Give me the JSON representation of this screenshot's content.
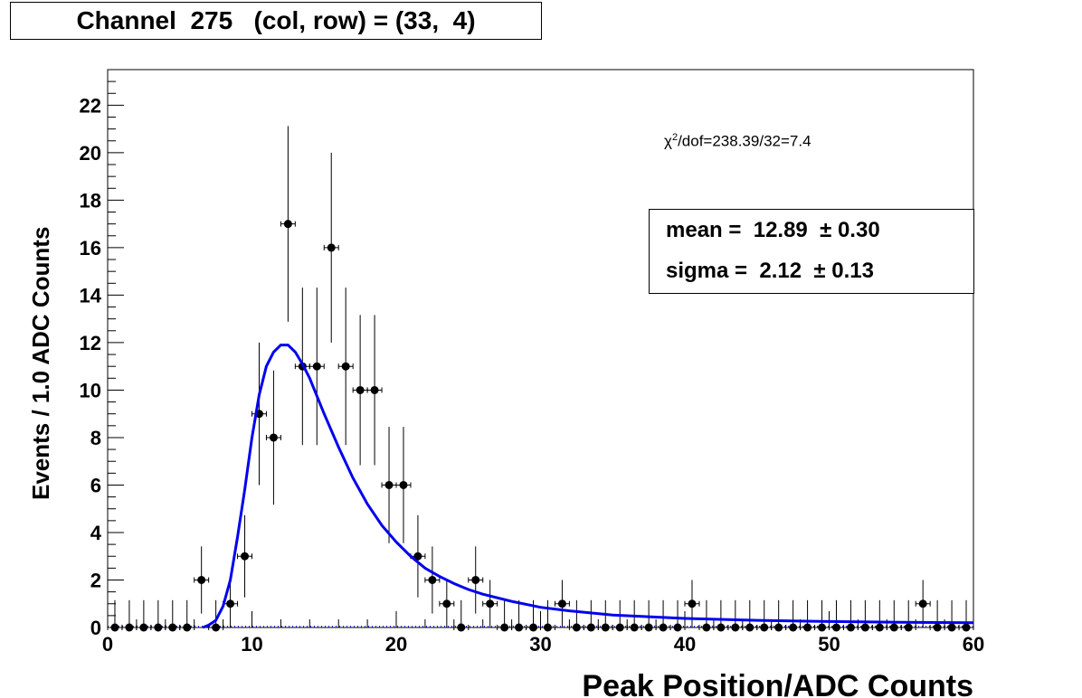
{
  "title": "Channel  275   (col, row) = (33,  4)",
  "chi2": {
    "prefix": "χ",
    "exponent": "2",
    "text": "/dof=238.39/32=7.4"
  },
  "stats": {
    "mean_label": "mean =  12.89  ± 0.30",
    "sigma_label": "sigma =  2.12  ± 0.13"
  },
  "chart_data": {
    "type": "scatter",
    "xlabel": "Peak Position/ADC Counts",
    "ylabel": "Events / 1.0 ADC Counts",
    "xlim": [
      0,
      60
    ],
    "ylim": [
      0,
      23.5
    ],
    "x_ticks": [
      0,
      10,
      20,
      30,
      40,
      50,
      60
    ],
    "y_ticks": [
      0,
      2,
      4,
      6,
      8,
      10,
      12,
      14,
      16,
      18,
      20,
      22
    ],
    "grid": false,
    "bin_width": 1.0,
    "series": [
      {
        "kind": "histogram-points",
        "color": "#000000",
        "x": [
          0.5,
          1.5,
          2.5,
          3.5,
          4.5,
          5.5,
          6.5,
          7.5,
          8.5,
          9.5,
          10.5,
          11.5,
          12.5,
          13.5,
          14.5,
          15.5,
          16.5,
          17.5,
          18.5,
          19.5,
          20.5,
          21.5,
          22.5,
          23.5,
          24.5,
          25.5,
          26.5,
          27.5,
          28.5,
          29.5,
          30.5,
          31.5,
          32.5,
          33.5,
          34.5,
          35.5,
          36.5,
          37.5,
          38.5,
          39.5,
          40.5,
          41.5,
          42.5,
          43.5,
          44.5,
          45.5,
          46.5,
          47.5,
          48.5,
          49.5,
          50.5,
          51.5,
          52.5,
          53.5,
          54.5,
          55.5,
          56.5,
          57.5,
          58.5,
          59.5
        ],
        "y": [
          0,
          0,
          0,
          0,
          0,
          0,
          2,
          0,
          1,
          3,
          9,
          8,
          17,
          11,
          11,
          16,
          11,
          10,
          10,
          6,
          6,
          3,
          2,
          1,
          0,
          2,
          1,
          0,
          0,
          0,
          0,
          1,
          0,
          0,
          0,
          0,
          0,
          0,
          0,
          0,
          1,
          0,
          0,
          0,
          0,
          0,
          0,
          0,
          0,
          0,
          0,
          0,
          0,
          0,
          0,
          0,
          1,
          0,
          0,
          0
        ]
      },
      {
        "kind": "fit-curve",
        "color": "#0000ee",
        "x": [
          6.6,
          7.0,
          7.5,
          8.0,
          8.5,
          9.0,
          9.5,
          10.0,
          10.5,
          11.0,
          11.5,
          12.0,
          12.5,
          13.0,
          13.5,
          14.0,
          15.0,
          16.0,
          17.0,
          18.0,
          19.0,
          20.0,
          21.0,
          22.0,
          23.0,
          24.0,
          25.0,
          26.0,
          28.0,
          30.0,
          32.0,
          35.0,
          40.0,
          45.0,
          50.0,
          55.0,
          60.0
        ],
        "y": [
          0,
          0.1,
          0.3,
          0.9,
          2.0,
          3.8,
          5.8,
          8.0,
          9.8,
          11.0,
          11.6,
          11.9,
          11.9,
          11.6,
          11.1,
          10.5,
          9.0,
          7.6,
          6.3,
          5.2,
          4.3,
          3.6,
          3.0,
          2.5,
          2.15,
          1.85,
          1.6,
          1.4,
          1.1,
          0.85,
          0.7,
          0.52,
          0.38,
          0.3,
          0.25,
          0.22,
          0.2
        ]
      }
    ]
  }
}
